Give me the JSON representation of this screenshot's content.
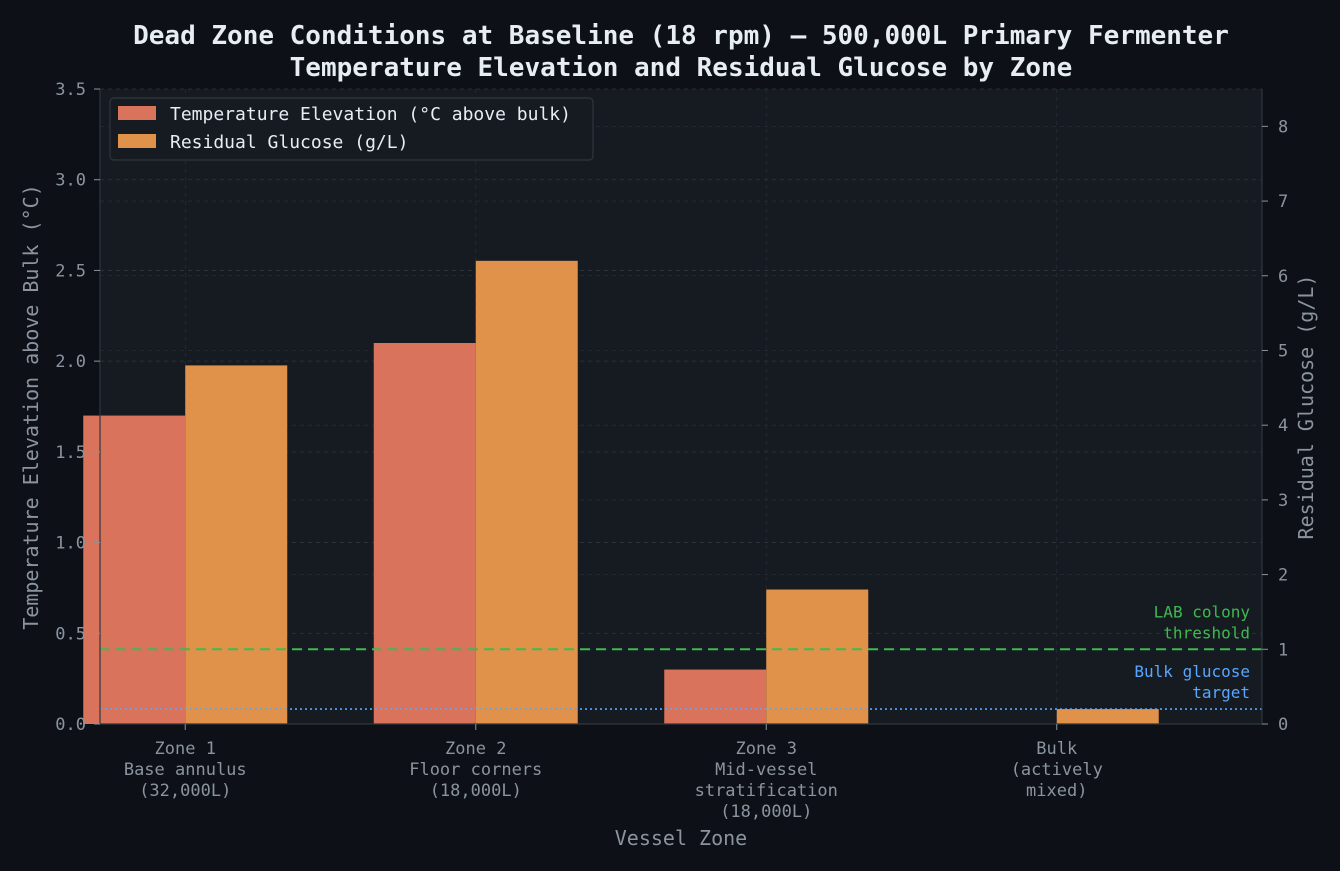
{
  "title_line1": "Dead Zone Conditions at Baseline (18 rpm) — 500,000L Primary Fermenter",
  "title_line2": "Temperature Elevation and Residual Glucose by Zone",
  "colors": {
    "background": "#0d1117",
    "plot_bg": "#161b22",
    "temp": "#d9735b",
    "glucose": "#e0924a",
    "lab_threshold": "#3fb950",
    "bulk_target": "#58a6ff"
  },
  "chart_data": {
    "type": "bar",
    "categories": [
      [
        "Zone 1",
        "Base annulus",
        "(32,000L)"
      ],
      [
        "Zone 2",
        "Floor corners",
        "(18,000L)"
      ],
      [
        "Zone 3",
        "Mid-vessel",
        "stratification",
        "(18,000L)"
      ],
      [
        "Bulk",
        "(actively",
        "mixed)"
      ]
    ],
    "series": [
      {
        "name": "Temperature Elevation (°C above bulk)",
        "axis": "left",
        "values": [
          1.7,
          2.1,
          0.3,
          0.0
        ]
      },
      {
        "name": "Residual Glucose (g/L)",
        "axis": "right",
        "values": [
          4.8,
          6.2,
          1.8,
          0.2
        ]
      }
    ],
    "xlabel": "Vessel Zone",
    "ylabel_left": "Temperature Elevation above Bulk (°C)",
    "ylabel_right": "Residual Glucose (g/L)",
    "ylim_left": [
      0,
      3.5
    ],
    "ylim_right": [
      0,
      8.5
    ],
    "yticks_left": [
      "0.0",
      "0.5",
      "1.0",
      "1.5",
      "2.0",
      "2.5",
      "3.0",
      "3.5"
    ],
    "yticks_right": [
      "0",
      "1",
      "2",
      "3",
      "4",
      "5",
      "6",
      "7",
      "8"
    ],
    "reference_lines": [
      {
        "label": [
          "LAB colony",
          "threshold"
        ],
        "axis": "right",
        "value": 1.0,
        "style": "dashed",
        "color": "#3fb950"
      },
      {
        "label": [
          "Bulk glucose",
          "target"
        ],
        "axis": "right",
        "value": 0.2,
        "style": "dotted",
        "color": "#58a6ff"
      }
    ],
    "legend_position": "top-left",
    "grid": true
  }
}
